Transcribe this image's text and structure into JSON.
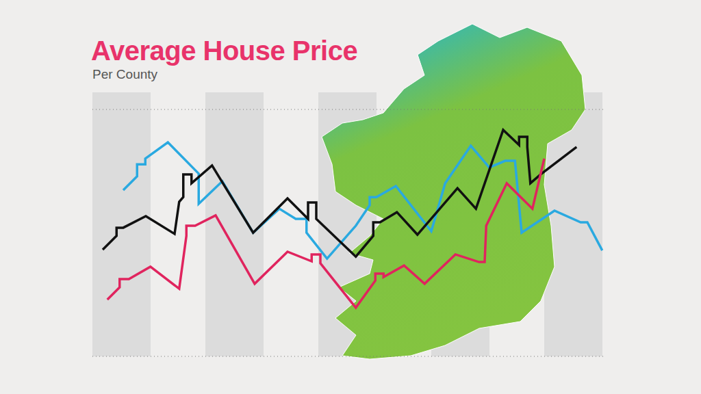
{
  "chart_data": {
    "type": "line",
    "title": "Average House Price",
    "subtitle": "Per County",
    "xlim": [
      0,
      100
    ],
    "ylim": [
      0,
      100
    ],
    "yticks": [
      0,
      20,
      48,
      74,
      100
    ],
    "grid": true,
    "tick_labels": false,
    "series": [
      {
        "color": "#2aa9e0",
        "x": [
          6.0,
          8.7,
          8.7,
          10.3,
          10.3,
          14.7,
          20.7,
          20.7,
          25.3,
          31.3,
          36.4,
          39.6,
          41.7,
          41.7,
          45.7,
          51.3,
          54.0,
          54.0,
          55.3,
          59.1,
          66.0,
          68.7,
          73.7,
          77.3,
          80.4,
          82.3,
          83.6,
          90.0,
          95.1,
          96.4,
          99.3
        ],
        "values": [
          67.3,
          72.9,
          77.8,
          77.8,
          80.1,
          86.7,
          74.0,
          61.8,
          70.9,
          50.1,
          59.8,
          55.7,
          55.7,
          50.1,
          39.6,
          52.9,
          61.2,
          64.5,
          64.5,
          69.0,
          50.7,
          70.1,
          85.3,
          76.5,
          79.2,
          79.2,
          50.1,
          59.0,
          54.3,
          54.3,
          42.9
        ]
      },
      {
        "color": "#111111",
        "x": [
          2.0,
          4.7,
          4.7,
          6.0,
          10.4,
          16.0,
          16.9,
          17.7,
          17.7,
          19.3,
          19.3,
          23.3,
          31.3,
          38.0,
          42.0,
          42.0,
          43.6,
          43.6,
          51.3,
          54.7,
          54.7,
          56.0,
          59.3,
          63.3,
          71.1,
          74.7,
          80.0,
          83.1,
          83.1,
          84.7,
          84.7,
          85.3,
          87.3,
          94.3
        ],
        "values": [
          43.2,
          48.8,
          52.1,
          52.1,
          56.8,
          49.6,
          62.6,
          64.5,
          73.7,
          73.7,
          70.1,
          77.3,
          50.1,
          64.0,
          55.7,
          62.3,
          62.3,
          55.7,
          40.4,
          48.8,
          54.3,
          54.3,
          58.4,
          49.3,
          68.1,
          59.8,
          91.7,
          85.6,
          88.9,
          88.9,
          84.8,
          70.1,
          73.7,
          84.8
        ]
      },
      {
        "color": "#e0245e",
        "x": [
          2.9,
          5.3,
          5.3,
          7.1,
          11.3,
          16.9,
          18.3,
          18.3,
          20.0,
          24.0,
          31.6,
          38.0,
          42.7,
          42.7,
          44.4,
          44.4,
          51.3,
          55.1,
          55.1,
          56.7,
          56.7,
          60.7,
          64.7,
          70.7,
          75.3,
          76.4,
          76.7,
          80.7,
          85.7,
          88.0
        ],
        "values": [
          23.0,
          28.0,
          31.3,
          31.3,
          36.3,
          27.4,
          48.8,
          52.9,
          52.9,
          57.1,
          29.4,
          42.4,
          38.5,
          41.3,
          41.3,
          37.7,
          19.7,
          30.7,
          33.5,
          33.5,
          32.1,
          36.8,
          29.4,
          41.3,
          38.2,
          38.2,
          52.9,
          70.1,
          59.8,
          80.1
        ]
      }
    ]
  }
}
